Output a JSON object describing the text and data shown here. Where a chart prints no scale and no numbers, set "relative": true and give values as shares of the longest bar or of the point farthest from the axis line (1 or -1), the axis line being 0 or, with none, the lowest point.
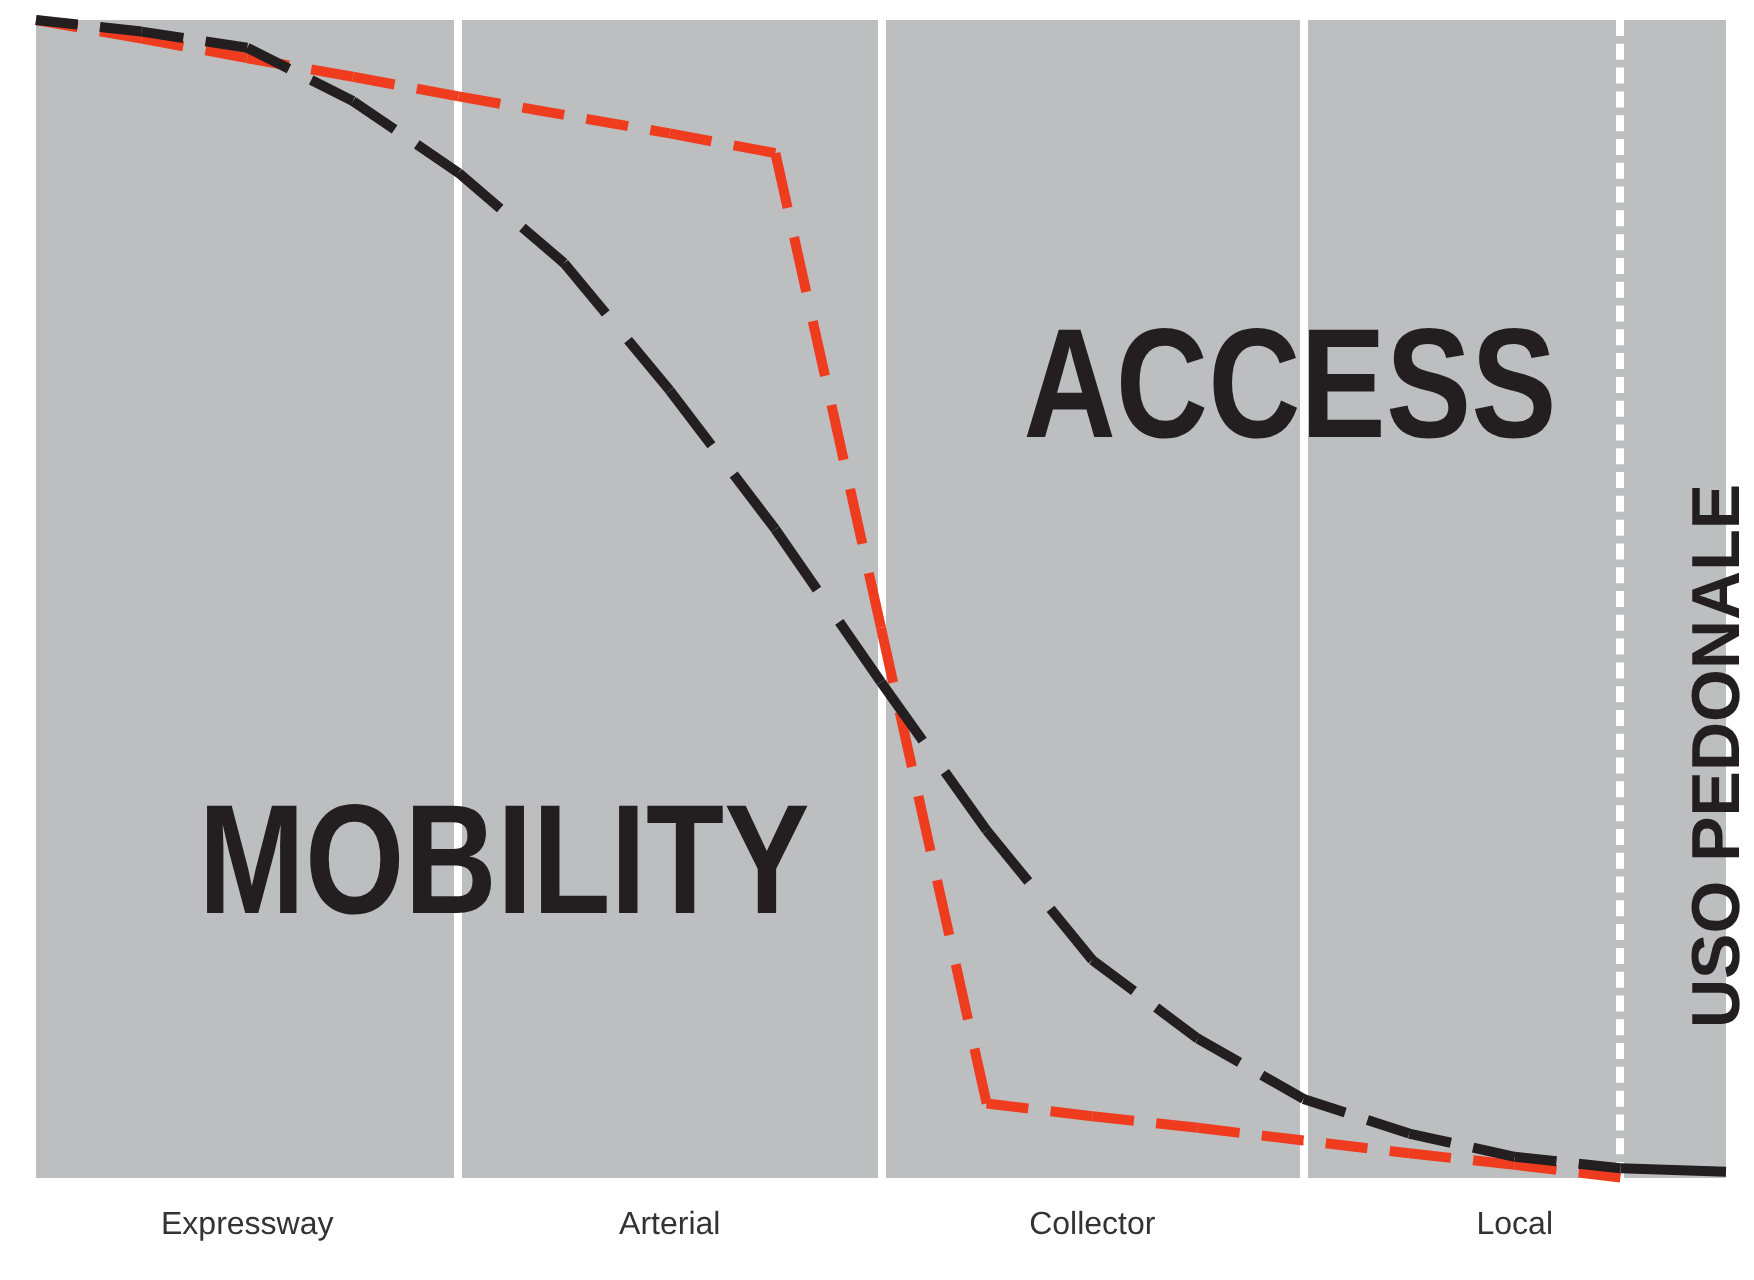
{
  "chart_data": {
    "type": "line",
    "relative": true,
    "tick_labels": "x",
    "line_style": "dashed",
    "categories": [
      null,
      null,
      "Expressway",
      null,
      null,
      null,
      "Arterial",
      null,
      null,
      null,
      "Collector",
      null,
      null,
      null,
      "Local",
      null,
      null
    ],
    "series": [
      {
        "color": "#231f20",
        "values": [
          1,
          0.99,
          0.976,
          0.93,
          0.868,
          0.79,
          0.68,
          0.56,
          0.428,
          0.3,
          0.188,
          0.12,
          0.068,
          0.038,
          0.018,
          0.008,
          0.005
        ]
      },
      {
        "color": "#f03c1e",
        "values": [
          1,
          0.984,
          0.967,
          0.951,
          0.934,
          0.918,
          0.902,
          0.885,
          0.475,
          0.064,
          0.053,
          0.043,
          0.032,
          0.021,
          0.011,
          0,
          null
        ]
      }
    ],
    "annotations": [
      "MOBILITY",
      "ACCESS",
      "USO PEDONALE"
    ]
  }
}
